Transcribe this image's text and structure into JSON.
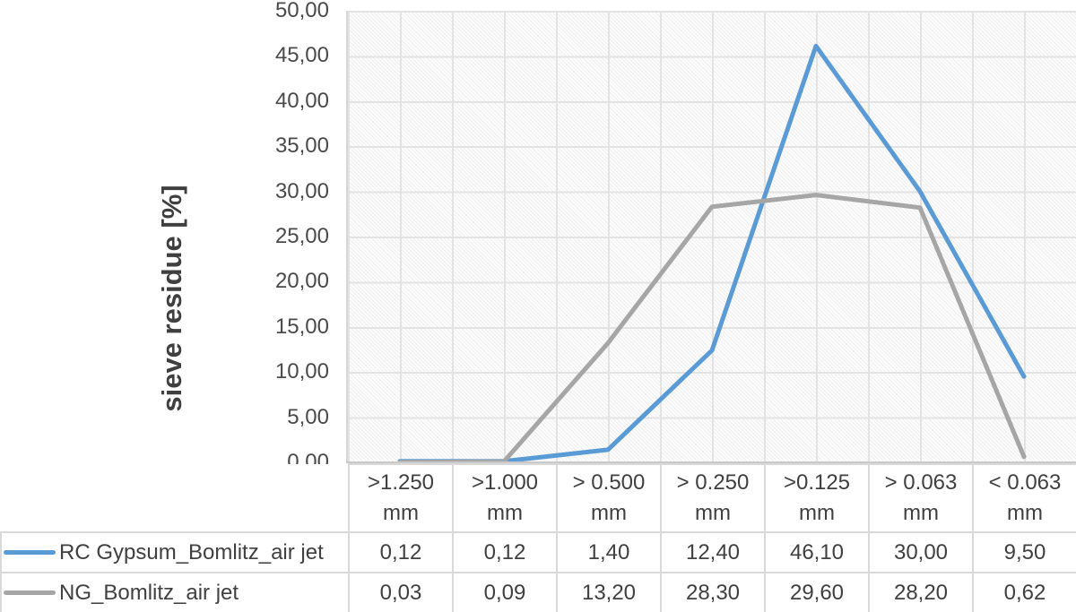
{
  "chart_data": {
    "type": "line",
    "title": "",
    "xlabel": "",
    "ylabel": "sieve residue [%]",
    "ylim": [
      0,
      50
    ],
    "ytick_step": 5,
    "ytick_labels": [
      "50,00",
      "45,00",
      "40,00",
      "35,00",
      "30,00",
      "25,00",
      "20,00",
      "15,00",
      "10,00",
      "5,00",
      "0,00"
    ],
    "grid": true,
    "plot_fill": "diagonal-hatch-light-gray",
    "legend_position": "table-rows-left",
    "categories": [
      ">1.250\nmm",
      ">1.000\nmm",
      "> 0.500\nmm",
      "> 0.250\nmm",
      ">0.125\nmm",
      "> 0.063\nmm",
      "< 0.063\nmm"
    ],
    "series": [
      {
        "name": "RC Gypsum_Bomlitz_air jet",
        "color": "#5B9BD5",
        "values": [
          0.12,
          0.12,
          1.4,
          12.4,
          46.1,
          30.0,
          9.5
        ],
        "cell_labels": [
          "0,12",
          "0,12",
          "1,40",
          "12,40",
          "46,10",
          "30,00",
          "9,50"
        ]
      },
      {
        "name": "NG_Bomlitz_air jet",
        "color": "#A6A6A6",
        "values": [
          0.03,
          0.09,
          13.2,
          28.3,
          29.6,
          28.2,
          0.62
        ],
        "cell_labels": [
          "0,03",
          "0,09",
          "13,20",
          "28,30",
          "29,60",
          "28,20",
          "0,62"
        ]
      }
    ]
  },
  "style_colors": {
    "series_blue": "#5B9BD5",
    "series_gray": "#A6A6A6",
    "gridline": "#E3E3E3",
    "table_border": "#D9D9D9",
    "text": "#404040"
  }
}
